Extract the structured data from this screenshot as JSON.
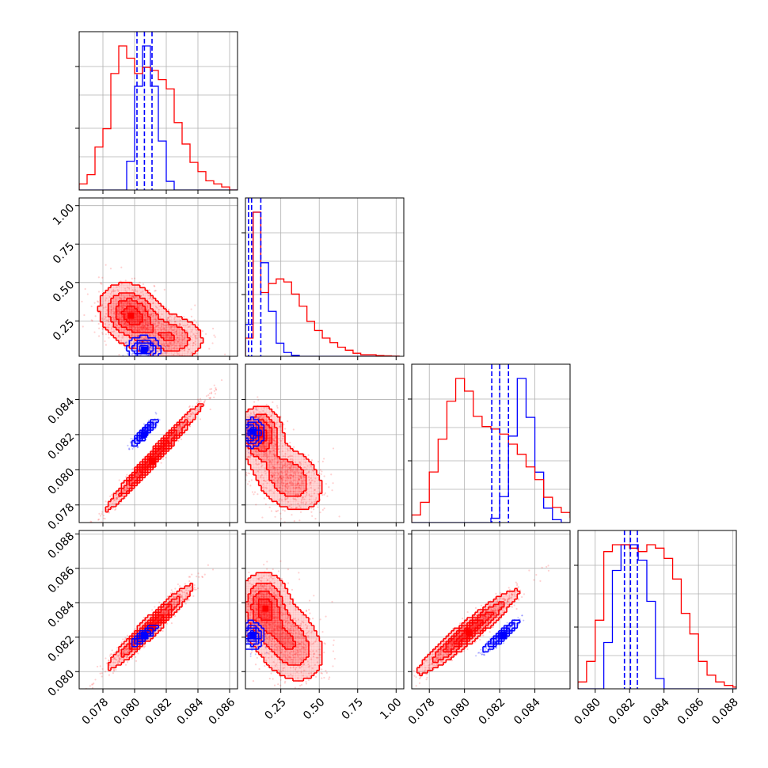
{
  "chart_data": {
    "type": "corner",
    "colors": {
      "sample_a": "#ff0000",
      "sample_b": "#0000ff",
      "grid": "#b0b0b0",
      "frame": "#000000"
    },
    "grid": true,
    "parameters": [
      {
        "range": [
          0.0765,
          0.0865
        ],
        "ticks": [
          0.078,
          0.08,
          0.082,
          0.084,
          0.086
        ],
        "tick_labels": [
          "0.078",
          "0.080",
          "0.082",
          "0.084",
          "0.086"
        ]
      },
      {
        "range": [
          0.02,
          1.05
        ],
        "ticks": [
          0.25,
          0.5,
          0.75,
          1.0
        ],
        "tick_labels": [
          "0.25",
          "0.50",
          "0.75",
          "1.00"
        ]
      },
      {
        "range": [
          0.077,
          0.086
        ],
        "ticks": [
          0.078,
          0.08,
          0.082,
          0.084
        ],
        "tick_labels": [
          "0.078",
          "0.080",
          "0.082",
          "0.084"
        ]
      },
      {
        "range": [
          0.079,
          0.0882
        ],
        "ticks": [
          0.08,
          0.082,
          0.084,
          0.086,
          0.088
        ],
        "tick_labels": [
          "0.080",
          "0.082",
          "0.084",
          "0.086",
          "0.088"
        ]
      }
    ],
    "marginals": [
      {
        "a_hist": {
          "edges_start": 0.0765,
          "bin_width": 0.0005,
          "counts": [
            2,
            5,
            14,
            20,
            38,
            47,
            43,
            38,
            40,
            39,
            36,
            33,
            22,
            15,
            9,
            6,
            3,
            2,
            1,
            0
          ]
        },
        "b_hist": {
          "edges_start": 0.0765,
          "bin_width": 0.0005,
          "counts": [
            0,
            0,
            0,
            0,
            0,
            0,
            20,
            72,
            100,
            72,
            34,
            6,
            0,
            0,
            0,
            0,
            0,
            0,
            0,
            0
          ]
        },
        "b_quantiles": [
          0.08015,
          0.08062,
          0.0811
        ]
      },
      {
        "a_hist": {
          "edges_start": 0.02,
          "bin_width": 0.05,
          "counts": [
            12,
            95,
            42,
            48,
            51,
            49,
            41,
            33,
            23,
            17,
            12,
            9,
            6,
            4,
            2,
            1,
            1,
            0.5,
            0.3,
            0.1
          ]
        },
        "b_hist": {
          "edges_start": 0.02,
          "bin_width": 0.05,
          "counts": [
            17,
            77,
            50,
            24,
            7,
            2,
            0.5,
            0,
            0,
            0,
            0,
            0,
            0,
            0,
            0,
            0,
            0,
            0,
            0,
            0
          ]
        },
        "b_quantiles": [
          0.04,
          0.06,
          0.12
        ]
      },
      {
        "a_hist": {
          "edges_start": 0.077,
          "bin_width": 0.0005,
          "counts": [
            3,
            8,
            20,
            33,
            48,
            57,
            52,
            42,
            38,
            37,
            35,
            31,
            27,
            22,
            17,
            10,
            6,
            4,
            2,
            1
          ]
        },
        "b_hist": {
          "edges_start": 0.077,
          "bin_width": 0.0005,
          "counts": [
            0,
            0,
            0,
            0,
            0,
            0,
            0,
            0,
            0,
            3,
            18,
            60,
            100,
            73,
            35,
            10,
            2,
            0,
            0,
            0
          ]
        },
        "b_quantiles": [
          0.08155,
          0.082,
          0.0825
        ]
      },
      {
        "a_hist": {
          "edges_start": 0.079,
          "bin_width": 0.0005,
          "counts": [
            2,
            8,
            20,
            40,
            42,
            42,
            41,
            40,
            42,
            41,
            38,
            32,
            22,
            16,
            8,
            4,
            2,
            1,
            0.5
          ]
        },
        "b_hist": {
          "edges_start": 0.079,
          "bin_width": 0.0005,
          "counts": [
            0,
            0,
            0,
            18,
            46,
            56,
            56,
            50,
            34,
            4,
            0,
            0,
            0,
            0,
            0,
            0,
            0,
            0,
            0
          ]
        },
        "b_quantiles": [
          0.0817,
          0.08205,
          0.08245
        ]
      }
    ],
    "pairs": [
      {
        "row": 1,
        "col": 0,
        "a_modes": [
          {
            "x": 0.0798,
            "y": 0.29,
            "sx": 0.001,
            "sy": 0.1,
            "rho": -0.2,
            "w": 0.65
          },
          {
            "x": 0.0823,
            "y": 0.14,
            "sx": 0.0011,
            "sy": 0.08,
            "rho": -0.1,
            "w": 0.35
          }
        ],
        "b_modes": [
          {
            "x": 0.0806,
            "y": 0.07,
            "sx": 0.0005,
            "sy": 0.04,
            "rho": 0.0,
            "w": 1
          }
        ]
      },
      {
        "row": 2,
        "col": 0,
        "a_modes": [
          {
            "x": 0.0812,
            "y": 0.0807,
            "sx": 0.0015,
            "sy": 0.0015,
            "rho": 0.985,
            "w": 1
          }
        ],
        "b_modes": [
          {
            "x": 0.0806,
            "y": 0.0821,
            "sx": 0.0004,
            "sy": 0.0004,
            "rho": 0.9,
            "w": 1
          }
        ]
      },
      {
        "row": 2,
        "col": 1,
        "a_modes": [
          {
            "x": 0.12,
            "y": 0.082,
            "sx": 0.07,
            "sy": 0.0008,
            "rho": 0.0,
            "w": 0.45
          },
          {
            "x": 0.3,
            "y": 0.0795,
            "sx": 0.12,
            "sy": 0.001,
            "rho": -0.3,
            "w": 0.55
          }
        ],
        "b_modes": [
          {
            "x": 0.06,
            "y": 0.0821,
            "sx": 0.04,
            "sy": 0.0004,
            "rho": 0.0,
            "w": 1
          }
        ]
      },
      {
        "row": 3,
        "col": 0,
        "a_modes": [
          {
            "x": 0.081,
            "y": 0.0826,
            "sx": 0.0013,
            "sy": 0.0012,
            "rho": 0.96,
            "w": 1
          }
        ],
        "b_modes": [
          {
            "x": 0.0806,
            "y": 0.0821,
            "sx": 0.0004,
            "sy": 0.0003,
            "rho": 0.85,
            "w": 1
          }
        ]
      },
      {
        "row": 3,
        "col": 1,
        "a_modes": [
          {
            "x": 0.14,
            "y": 0.0838,
            "sx": 0.08,
            "sy": 0.001,
            "rho": 0.0,
            "w": 0.45
          },
          {
            "x": 0.3,
            "y": 0.0817,
            "sx": 0.12,
            "sy": 0.0012,
            "rho": -0.3,
            "w": 0.55
          }
        ],
        "b_modes": [
          {
            "x": 0.06,
            "y": 0.0821,
            "sx": 0.04,
            "sy": 0.0004,
            "rho": 0.0,
            "w": 1
          }
        ]
      },
      {
        "row": 3,
        "col": 2,
        "a_modes": [
          {
            "x": 0.0802,
            "y": 0.0823,
            "sx": 0.0014,
            "sy": 0.0012,
            "rho": 0.95,
            "w": 1
          }
        ],
        "b_modes": [
          {
            "x": 0.0821,
            "y": 0.0821,
            "sx": 0.0005,
            "sy": 0.00045,
            "rho": 0.92,
            "w": 1
          }
        ]
      }
    ]
  }
}
